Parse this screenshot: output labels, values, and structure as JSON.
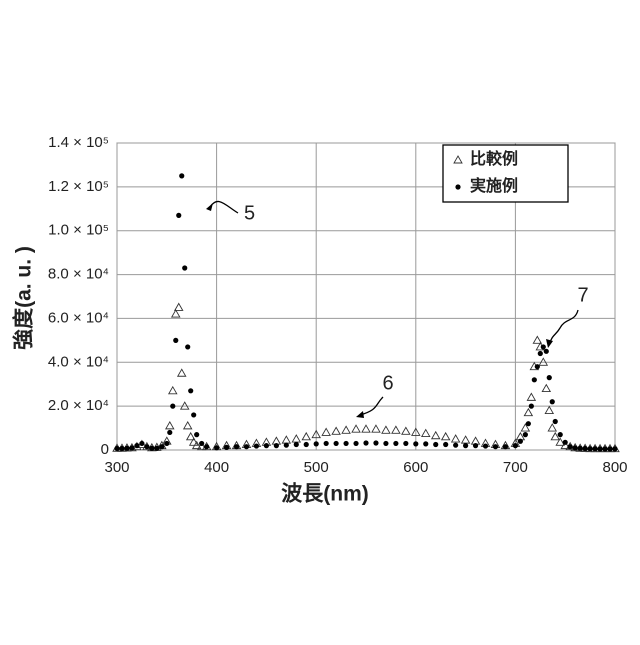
{
  "chart_data": {
    "type": "scatter",
    "x_label": "波長(nm)",
    "y_label": "強度(a. u. )",
    "x": [
      300,
      305,
      310,
      315,
      320,
      325,
      330,
      335,
      340,
      345,
      350,
      353,
      356,
      359,
      362,
      365,
      368,
      371,
      374,
      377,
      380,
      385,
      390,
      400,
      410,
      420,
      430,
      440,
      450,
      460,
      470,
      480,
      490,
      500,
      510,
      520,
      530,
      540,
      550,
      560,
      570,
      580,
      590,
      600,
      610,
      620,
      630,
      640,
      650,
      660,
      670,
      680,
      690,
      700,
      705,
      710,
      713,
      716,
      719,
      722,
      725,
      728,
      731,
      734,
      737,
      740,
      745,
      750,
      755,
      760,
      765,
      770,
      775,
      780,
      785,
      790,
      795,
      800
    ],
    "series": [
      {
        "name": "比較例",
        "marker": "triangle",
        "color": "#333333",
        "values": [
          800,
          800,
          900,
          1000,
          1500,
          2500,
          1500,
          1000,
          1200,
          2000,
          4000,
          11000,
          27000,
          62000,
          65000,
          35000,
          20000,
          11000,
          6000,
          3500,
          2000,
          1500,
          1500,
          1500,
          2000,
          2000,
          2500,
          3000,
          3500,
          4000,
          4500,
          5000,
          6000,
          7000,
          8000,
          8500,
          9000,
          9500,
          9500,
          9500,
          9000,
          9000,
          8500,
          8000,
          7500,
          6500,
          6000,
          5000,
          4500,
          4000,
          3000,
          2500,
          2000,
          3000,
          6000,
          10000,
          17000,
          24000,
          38000,
          50000,
          47000,
          40000,
          28000,
          18000,
          10000,
          6000,
          3500,
          2000,
          1500,
          1000,
          800,
          700,
          600,
          600,
          600,
          600,
          600,
          600
        ]
      },
      {
        "name": "実施例",
        "marker": "dot",
        "color": "#000000",
        "values": [
          700,
          700,
          800,
          1000,
          2000,
          3000,
          1500,
          800,
          800,
          1500,
          3000,
          8000,
          20000,
          50000,
          107000,
          125000,
          83000,
          47000,
          27000,
          16000,
          7000,
          3000,
          1500,
          1000,
          1200,
          1500,
          1500,
          1800,
          2000,
          2000,
          2200,
          2500,
          2500,
          2800,
          3000,
          3000,
          3000,
          3000,
          3200,
          3200,
          3000,
          3000,
          3000,
          2800,
          2800,
          2500,
          2500,
          2200,
          2000,
          2000,
          1800,
          1500,
          1500,
          2000,
          4000,
          7000,
          12000,
          20000,
          32000,
          38000,
          44000,
          47000,
          45000,
          33000,
          22000,
          13000,
          7000,
          3500,
          1500,
          1000,
          800,
          700,
          600,
          600,
          500,
          500,
          500,
          500
        ]
      }
    ],
    "xlim": [
      300,
      800
    ],
    "xticks": [
      300,
      400,
      500,
      600,
      700,
      800
    ],
    "ylim": [
      0,
      140000
    ],
    "yticks": [
      0,
      {
        "value": 20000,
        "label": "2.0 × 10⁴"
      },
      {
        "value": 40000,
        "label": "4.0 × 10⁴"
      },
      {
        "value": 60000,
        "label": "6.0 × 10⁴"
      },
      {
        "value": 80000,
        "label": "8.0 × 10⁴"
      },
      {
        "value": 100000,
        "label": "1.0 × 10⁵"
      },
      {
        "value": 120000,
        "label": "1.2 × 10⁵"
      },
      {
        "value": 140000,
        "label": "1.4 × 10⁵"
      }
    ],
    "grid": true,
    "annotations": [
      "5",
      "6",
      "7"
    ]
  }
}
